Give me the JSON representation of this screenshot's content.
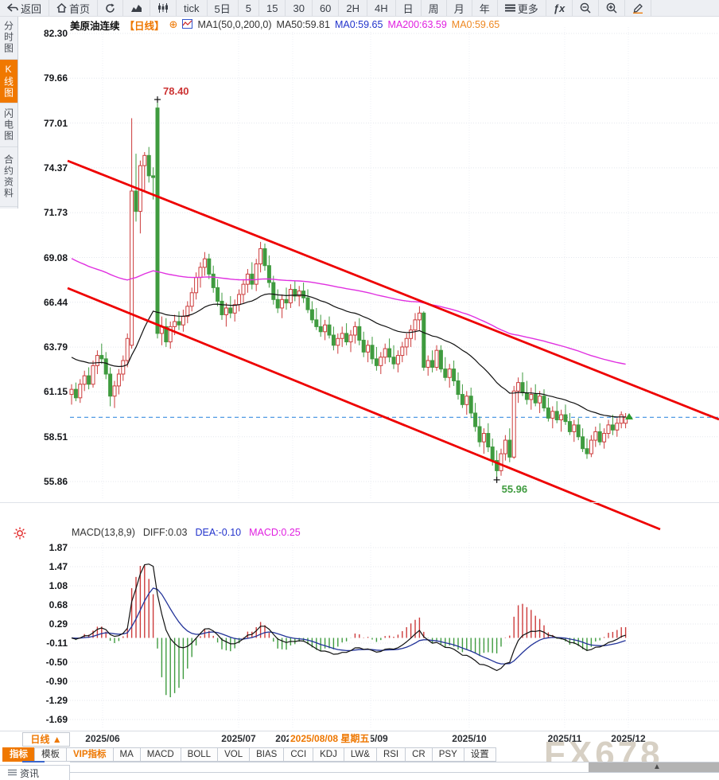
{
  "toolbar": {
    "items": [
      {
        "id": "back",
        "icon": "back-arrow-icon",
        "label": "返回"
      },
      {
        "id": "home",
        "icon": "home-icon",
        "label": "首页"
      },
      {
        "id": "refresh",
        "icon": "refresh-icon",
        "label": ""
      },
      {
        "id": "line-chart",
        "icon": "line-chart-icon",
        "label": ""
      },
      {
        "id": "candle-chart",
        "icon": "candlestick-icon",
        "label": ""
      },
      {
        "id": "tick",
        "label": "tick"
      },
      {
        "id": "5d",
        "label": "5日"
      },
      {
        "id": "m5",
        "label": "5"
      },
      {
        "id": "m15",
        "label": "15"
      },
      {
        "id": "m30",
        "label": "30"
      },
      {
        "id": "m60",
        "label": "60"
      },
      {
        "id": "h2",
        "label": "2H"
      },
      {
        "id": "h4",
        "label": "4H"
      },
      {
        "id": "day",
        "label": "日"
      },
      {
        "id": "week",
        "label": "周"
      },
      {
        "id": "month",
        "label": "月"
      },
      {
        "id": "year",
        "label": "年"
      },
      {
        "id": "more",
        "icon": "menu-icon",
        "label": "更多"
      },
      {
        "id": "fx",
        "label": "ƒx"
      },
      {
        "id": "zoom-out",
        "icon": "zoom-out-icon",
        "label": ""
      },
      {
        "id": "zoom-in",
        "icon": "zoom-in-icon",
        "label": ""
      },
      {
        "id": "draw",
        "icon": "pencil-icon",
        "label": ""
      }
    ]
  },
  "sidebar": {
    "items": [
      {
        "label": "分时图",
        "active": false
      },
      {
        "label": "K线图",
        "active": true
      },
      {
        "label": "闪电图",
        "active": false
      },
      {
        "label": "合约资料",
        "active": false
      }
    ]
  },
  "chart_header": {
    "symbol": "美原油连续",
    "period_tag": "【日线】",
    "add_icon": "⊕",
    "ma_config": "MA1(50,0,200,0)",
    "ma_values": [
      {
        "label": "MA50:59.81",
        "color": "#333333"
      },
      {
        "label": "MA0:59.65",
        "color": "#2233cc"
      },
      {
        "label": "MA200:63.59",
        "color": "#e020e0"
      },
      {
        "label": "MA0:59.65",
        "color": "#ee8822"
      }
    ]
  },
  "macd_header": {
    "title": "MACD(13,8,9)",
    "diff": "DIFF:0.03",
    "dea": "DEA:-0.10",
    "macd": "MACD:0.25"
  },
  "crosshair_tooltip": {
    "label": "2025/08/08 星期五"
  },
  "bottom": {
    "period_selector": "日线 ▲",
    "tabs": [
      {
        "label": "指标",
        "active": true
      },
      {
        "label": "模板"
      },
      {
        "label": "VIP指标",
        "vip": true
      },
      {
        "label": "MA"
      },
      {
        "label": "MACD"
      },
      {
        "label": "BOLL"
      },
      {
        "label": "VOL"
      },
      {
        "label": "BIAS"
      },
      {
        "label": "CCI"
      },
      {
        "label": "KDJ"
      },
      {
        "label": "LW&"
      },
      {
        "label": "RSI"
      },
      {
        "label": "CR"
      },
      {
        "label": "PSY"
      },
      {
        "label": "设置"
      }
    ],
    "news_tab": "资讯",
    "watermark": "FX678"
  },
  "chart_data": {
    "type": "candlestick+macd",
    "title": "美原油连续 日线",
    "y_axis_labels": [
      "82.30",
      "79.66",
      "77.01",
      "74.37",
      "71.73",
      "69.08",
      "66.44",
      "63.79",
      "61.15",
      "58.51",
      "55.86"
    ],
    "macd_axis_labels": [
      "1.87",
      "1.47",
      "1.08",
      "0.68",
      "0.29",
      "-0.11",
      "-0.50",
      "-0.90",
      "-1.29",
      "-1.69"
    ],
    "x_axis_labels": [
      "2025/06",
      "2025/07",
      "2025/08",
      "2025/09",
      "2025/10",
      "2025/11",
      "2025/12"
    ],
    "annotations": {
      "high_label": "78.40",
      "low_label": "55.96",
      "high_value": 78.4,
      "low_value": 55.96
    },
    "last_close": 59.65,
    "ma50_start": 63.3,
    "ma200_start": 69.15,
    "colors": {
      "up": "#cc3b3b",
      "down": "#3f9b3f",
      "ma50": "#111111",
      "ma200": "#e030e0",
      "trend": "#ee0000",
      "close_line": "#3d8fe0",
      "dea": "#223399",
      "diff": "#111111",
      "accent": "#f07800"
    },
    "candles": [
      [
        61.0,
        61.6,
        60.4,
        61.3
      ],
      [
        61.3,
        61.7,
        60.6,
        60.8
      ],
      [
        60.8,
        61.9,
        60.5,
        61.6
      ],
      [
        61.6,
        62.4,
        61.2,
        62.1
      ],
      [
        62.1,
        62.6,
        61.3,
        61.6
      ],
      [
        61.6,
        63.0,
        61.4,
        62.7
      ],
      [
        62.7,
        63.6,
        62.2,
        63.3
      ],
      [
        63.3,
        64.0,
        62.8,
        63.1
      ],
      [
        63.1,
        63.5,
        61.9,
        62.2
      ],
      [
        62.2,
        62.6,
        60.3,
        60.9
      ],
      [
        60.9,
        61.8,
        60.2,
        61.5
      ],
      [
        61.5,
        62.5,
        61.0,
        62.2
      ],
      [
        62.2,
        63.3,
        61.8,
        63.0
      ],
      [
        63.0,
        64.6,
        62.6,
        64.3
      ],
      [
        63.9,
        77.3,
        63.7,
        73.0
      ],
      [
        73.0,
        75.2,
        71.2,
        71.8
      ],
      [
        71.8,
        74.8,
        70.5,
        74.5
      ],
      [
        74.5,
        75.3,
        73.0,
        75.1
      ],
      [
        75.1,
        75.6,
        73.5,
        73.9
      ],
      [
        73.9,
        74.4,
        72.5,
        73.8
      ],
      [
        77.9,
        78.4,
        64.3,
        64.6
      ],
      [
        64.6,
        65.6,
        63.9,
        65.0
      ],
      [
        65.0,
        65.5,
        63.8,
        64.1
      ],
      [
        64.1,
        65.3,
        63.7,
        65.0
      ],
      [
        65.0,
        65.7,
        64.5,
        65.3
      ],
      [
        65.3,
        65.9,
        64.8,
        65.1
      ],
      [
        65.1,
        66.0,
        64.7,
        65.6
      ],
      [
        65.6,
        66.5,
        65.2,
        66.2
      ],
      [
        66.2,
        67.3,
        65.9,
        67.0
      ],
      [
        67.0,
        68.2,
        66.6,
        67.9
      ],
      [
        67.9,
        68.8,
        67.3,
        68.5
      ],
      [
        68.5,
        69.4,
        68.0,
        69.0
      ],
      [
        69.0,
        69.3,
        67.8,
        68.1
      ],
      [
        68.1,
        68.6,
        67.0,
        67.3
      ],
      [
        67.3,
        67.8,
        66.2,
        66.5
      ],
      [
        66.5,
        67.0,
        65.4,
        65.7
      ],
      [
        65.7,
        66.4,
        65.0,
        66.1
      ],
      [
        66.1,
        66.8,
        65.5,
        65.8
      ],
      [
        65.8,
        66.6,
        65.3,
        66.3
      ],
      [
        66.3,
        67.2,
        65.9,
        66.9
      ],
      [
        66.9,
        67.8,
        66.4,
        67.5
      ],
      [
        67.5,
        68.4,
        67.0,
        68.1
      ],
      [
        68.1,
        68.8,
        67.2,
        67.5
      ],
      [
        67.5,
        69.0,
        67.1,
        68.7
      ],
      [
        68.7,
        70.0,
        68.2,
        69.6
      ],
      [
        69.6,
        69.9,
        68.3,
        68.6
      ],
      [
        68.6,
        69.2,
        67.3,
        67.6
      ],
      [
        67.6,
        68.0,
        66.3,
        66.6
      ],
      [
        66.6,
        67.2,
        65.8,
        66.1
      ],
      [
        66.1,
        66.9,
        65.5,
        66.6
      ],
      [
        66.6,
        67.3,
        66.0,
        66.4
      ],
      [
        66.4,
        67.5,
        66.1,
        67.2
      ],
      [
        67.2,
        67.7,
        66.5,
        66.8
      ],
      [
        66.8,
        67.4,
        66.2,
        67.1
      ],
      [
        67.1,
        67.6,
        66.4,
        66.7
      ],
      [
        66.7,
        67.2,
        65.8,
        66.0
      ],
      [
        66.0,
        66.5,
        65.2,
        65.4
      ],
      [
        65.4,
        66.1,
        64.8,
        65.0
      ],
      [
        65.0,
        65.7,
        64.4,
        64.7
      ],
      [
        64.7,
        65.4,
        64.2,
        65.1
      ],
      [
        65.1,
        65.6,
        64.3,
        64.5
      ],
      [
        64.5,
        65.0,
        63.6,
        63.9
      ],
      [
        63.9,
        64.6,
        63.4,
        64.3
      ],
      [
        64.3,
        65.0,
        63.8,
        64.6
      ],
      [
        64.6,
        65.2,
        63.9,
        64.1
      ],
      [
        64.1,
        64.8,
        63.5,
        64.5
      ],
      [
        64.5,
        65.3,
        64.0,
        65.0
      ],
      [
        65.0,
        65.5,
        63.9,
        64.2
      ],
      [
        64.2,
        64.7,
        63.2,
        63.5
      ],
      [
        63.5,
        64.2,
        62.9,
        63.9
      ],
      [
        63.9,
        64.4,
        62.8,
        63.1
      ],
      [
        63.1,
        63.8,
        62.4,
        62.7
      ],
      [
        62.7,
        63.5,
        62.2,
        63.2
      ],
      [
        63.2,
        64.0,
        62.8,
        63.7
      ],
      [
        63.7,
        64.3,
        62.9,
        63.2
      ],
      [
        63.2,
        63.9,
        62.5,
        62.8
      ],
      [
        62.8,
        63.6,
        62.3,
        63.3
      ],
      [
        63.3,
        64.1,
        62.9,
        63.8
      ],
      [
        63.8,
        64.6,
        63.3,
        64.3
      ],
      [
        64.3,
        65.1,
        63.8,
        64.8
      ],
      [
        64.8,
        65.8,
        64.2,
        65.4
      ],
      [
        65.4,
        66.2,
        64.8,
        65.8
      ],
      [
        65.8,
        65.9,
        62.4,
        62.6
      ],
      [
        62.6,
        63.3,
        62.1,
        63.0
      ],
      [
        63.0,
        63.6,
        62.3,
        62.6
      ],
      [
        62.6,
        63.9,
        62.4,
        63.6
      ],
      [
        63.6,
        63.9,
        62.3,
        62.5
      ],
      [
        62.5,
        63.2,
        61.8,
        62.0
      ],
      [
        62.0,
        62.8,
        61.4,
        62.5
      ],
      [
        62.5,
        63.0,
        61.5,
        61.8
      ],
      [
        61.8,
        62.3,
        60.7,
        61.0
      ],
      [
        61.0,
        61.6,
        60.2,
        60.4
      ],
      [
        60.4,
        61.2,
        59.8,
        60.9
      ],
      [
        60.9,
        61.4,
        59.6,
        59.9
      ],
      [
        59.9,
        60.5,
        58.8,
        59.1
      ],
      [
        59.1,
        59.7,
        57.9,
        58.2
      ],
      [
        58.2,
        59.0,
        57.5,
        58.7
      ],
      [
        58.7,
        59.3,
        57.6,
        57.9
      ],
      [
        57.9,
        58.4,
        56.8,
        57.1
      ],
      [
        57.1,
        57.7,
        55.96,
        56.5
      ],
      [
        56.5,
        57.8,
        56.2,
        57.5
      ],
      [
        57.5,
        58.6,
        57.1,
        58.3
      ],
      [
        58.3,
        59.0,
        57.0,
        57.3
      ],
      [
        57.3,
        61.5,
        57.2,
        61.2
      ],
      [
        61.2,
        62.0,
        60.5,
        61.7
      ],
      [
        61.7,
        62.3,
        60.9,
        61.1
      ],
      [
        61.1,
        61.8,
        60.4,
        60.7
      ],
      [
        60.7,
        61.4,
        60.1,
        61.0
      ],
      [
        61.0,
        61.6,
        60.3,
        60.5
      ],
      [
        60.5,
        61.2,
        59.9,
        60.9
      ],
      [
        60.9,
        61.3,
        60.0,
        60.2
      ],
      [
        60.2,
        60.8,
        59.4,
        59.6
      ],
      [
        59.6,
        60.3,
        59.0,
        60.0
      ],
      [
        60.0,
        60.6,
        59.3,
        59.5
      ],
      [
        59.5,
        60.1,
        58.8,
        59.8
      ],
      [
        59.8,
        60.4,
        59.2,
        59.4
      ],
      [
        59.4,
        59.9,
        58.6,
        58.8
      ],
      [
        58.8,
        59.5,
        58.2,
        59.2
      ],
      [
        59.2,
        59.6,
        58.3,
        58.5
      ],
      [
        58.5,
        59.0,
        57.6,
        57.8
      ],
      [
        57.8,
        58.4,
        57.2,
        57.5
      ],
      [
        57.5,
        58.6,
        57.3,
        58.3
      ],
      [
        58.3,
        59.1,
        57.9,
        58.8
      ],
      [
        58.8,
        59.3,
        58.0,
        58.2
      ],
      [
        58.2,
        59.0,
        57.8,
        58.7
      ],
      [
        58.7,
        59.5,
        58.4,
        59.2
      ],
      [
        59.2,
        59.8,
        58.6,
        58.9
      ],
      [
        58.9,
        59.6,
        58.5,
        59.3
      ],
      [
        59.3,
        60.0,
        59.0,
        59.8
      ],
      [
        59.3,
        59.9,
        59.0,
        59.65
      ]
    ]
  }
}
